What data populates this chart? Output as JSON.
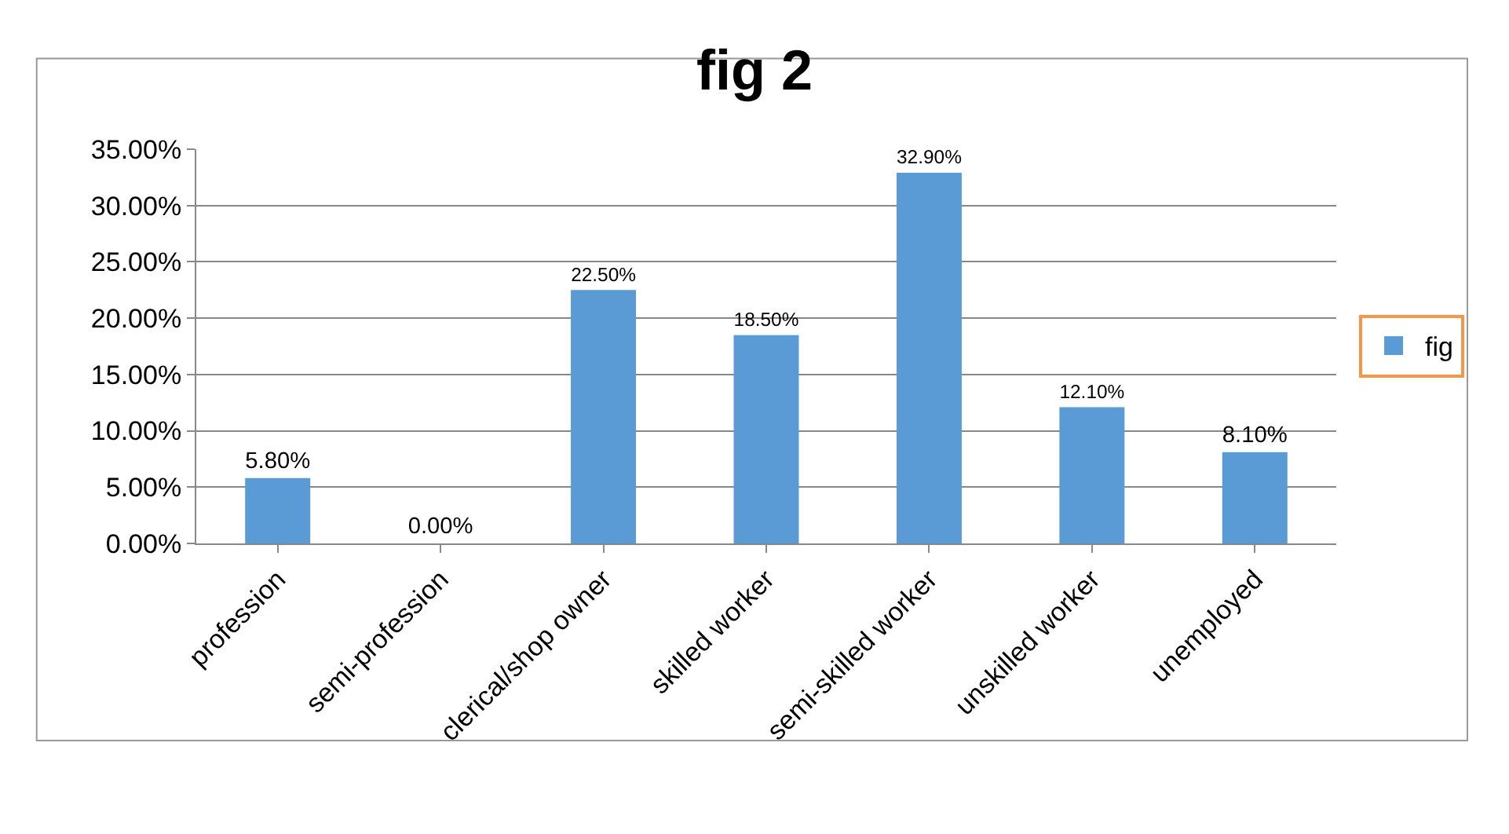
{
  "chart_data": {
    "type": "bar",
    "title": "fig 2",
    "categories": [
      "profession",
      "semi-profession",
      "clerical/shop owner",
      "skilled worker",
      "semi-skilled worker",
      "unskilled worker",
      "unemployed"
    ],
    "series": [
      {
        "name": "fig",
        "color": "#5b9bd5",
        "values": [
          5.8,
          0,
          22.5,
          18.5,
          32.9,
          12.1,
          8.1
        ],
        "value_labels": [
          "5.80%",
          "0.00%",
          "22.50%",
          "18.50%",
          "32.90%",
          "12.10%",
          "8.10%"
        ]
      }
    ],
    "ylim": [
      0,
      35
    ],
    "yticks": [
      {
        "value": 0,
        "label": "0.00%"
      },
      {
        "value": 5,
        "label": "5.00%"
      },
      {
        "value": 10,
        "label": "10.00%"
      },
      {
        "value": 15,
        "label": "15.00%"
      },
      {
        "value": 20,
        "label": "20.00%"
      },
      {
        "value": 25,
        "label": "25.00%"
      },
      {
        "value": 30,
        "label": "30.00%"
      },
      {
        "value": 35,
        "label": "35.00%"
      }
    ],
    "grid": "y",
    "legend": "right"
  }
}
